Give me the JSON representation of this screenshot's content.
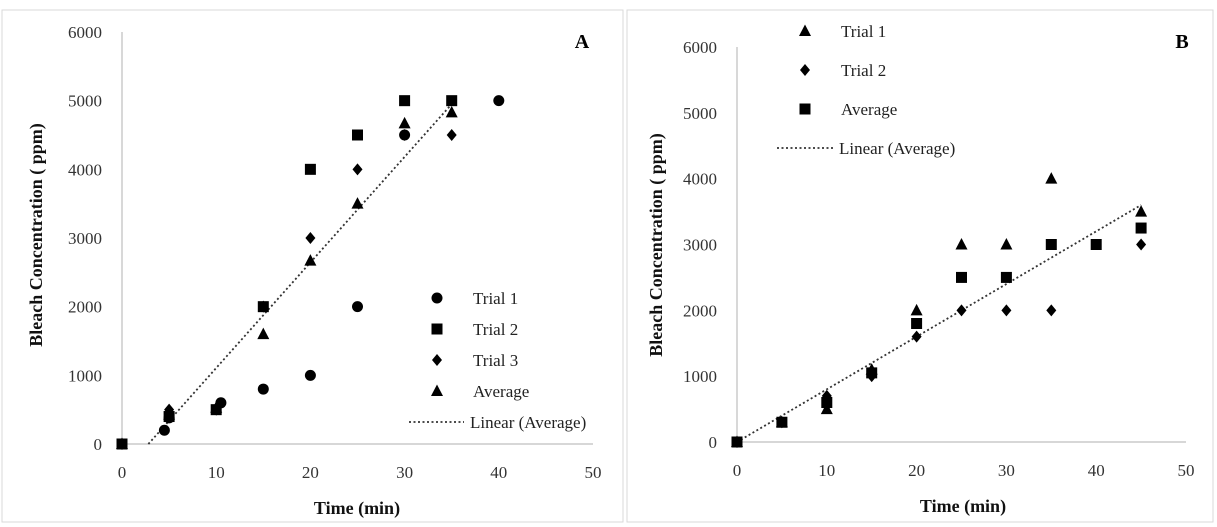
{
  "chart_data": [
    {
      "type": "scatter",
      "panel_label": "A",
      "xlabel": "Time (min)",
      "ylabel": "Bleach Concentration ( ppm)",
      "xlim": [
        0,
        50
      ],
      "ylim": [
        0,
        6000
      ],
      "xticks": [
        "0",
        "10",
        "20",
        "30",
        "40",
        "50"
      ],
      "yticks": [
        "0",
        "1000",
        "2000",
        "3000",
        "4000",
        "5000",
        "6000"
      ],
      "grid": false,
      "legend_position": "bottom-right",
      "series": [
        {
          "name": "Trial 1",
          "marker": "circle",
          "points": [
            [
              0,
              0
            ],
            [
              4.5,
              200
            ],
            [
              5,
              380
            ],
            [
              10.5,
              600
            ],
            [
              15,
              800
            ],
            [
              20,
              1000
            ],
            [
              25,
              2000
            ],
            [
              30,
              4500
            ],
            [
              40,
              5000
            ]
          ]
        },
        {
          "name": "Trial 2",
          "marker": "square",
          "points": [
            [
              0,
              0
            ],
            [
              5,
              400
            ],
            [
              10,
              500
            ],
            [
              15,
              2000
            ],
            [
              20,
              4000
            ],
            [
              25,
              4500
            ],
            [
              30,
              5000
            ],
            [
              35,
              5000
            ]
          ]
        },
        {
          "name": "Trial 3",
          "marker": "diamond",
          "points": [
            [
              0,
              0
            ],
            [
              5,
              500
            ],
            [
              10,
              500
            ],
            [
              15,
              2000
            ],
            [
              20,
              3000
            ],
            [
              25,
              4000
            ],
            [
              30,
              4500
            ],
            [
              35,
              4500
            ]
          ]
        },
        {
          "name": "Average",
          "marker": "triangle",
          "points": [
            [
              0,
              0
            ],
            [
              5,
              430
            ],
            [
              10,
              530
            ],
            [
              15,
              1600
            ],
            [
              20,
              2670
            ],
            [
              25,
              3500
            ],
            [
              30,
              4670
            ],
            [
              35,
              4830
            ]
          ]
        }
      ],
      "trendline": {
        "name": "Linear (Average)",
        "style": "dotted",
        "x_range": [
          2.8,
          35
        ],
        "y_range": [
          0,
          4950
        ]
      }
    },
    {
      "type": "scatter",
      "panel_label": "B",
      "xlabel": "Time (min)",
      "ylabel": "Bleach Concentration ( ppm)",
      "xlim": [
        0,
        50
      ],
      "ylim": [
        0,
        6000
      ],
      "xticks": [
        "0",
        "10",
        "20",
        "30",
        "40",
        "50"
      ],
      "yticks": [
        "0",
        "1000",
        "2000",
        "3000",
        "4000",
        "5000",
        "6000"
      ],
      "grid": false,
      "legend_position": "top-left",
      "series": [
        {
          "name": "Trial 1",
          "marker": "triangle",
          "points": [
            [
              0,
              0
            ],
            [
              5,
              300
            ],
            [
              10,
              500
            ],
            [
              15,
              1100
            ],
            [
              20,
              2000
            ],
            [
              25,
              3000
            ],
            [
              30,
              3000
            ],
            [
              35,
              4000
            ],
            [
              45,
              3500
            ]
          ]
        },
        {
          "name": "Trial 2",
          "marker": "diamond",
          "points": [
            [
              0,
              0
            ],
            [
              5,
              300
            ],
            [
              10,
              700
            ],
            [
              15,
              1000
            ],
            [
              20,
              1600
            ],
            [
              25,
              2000
            ],
            [
              30,
              2000
            ],
            [
              35,
              2000
            ],
            [
              45,
              3000
            ]
          ]
        },
        {
          "name": "Average",
          "marker": "square",
          "points": [
            [
              0,
              0
            ],
            [
              5,
              300
            ],
            [
              10,
              600
            ],
            [
              15,
              1050
            ],
            [
              20,
              1800
            ],
            [
              25,
              2500
            ],
            [
              30,
              2500
            ],
            [
              35,
              3000
            ],
            [
              40,
              3000
            ],
            [
              45,
              3250
            ]
          ]
        }
      ],
      "trendline": {
        "name": "Linear (Average)",
        "style": "dotted",
        "x_range": [
          0,
          45
        ],
        "y_range": [
          0,
          3600
        ]
      }
    }
  ]
}
